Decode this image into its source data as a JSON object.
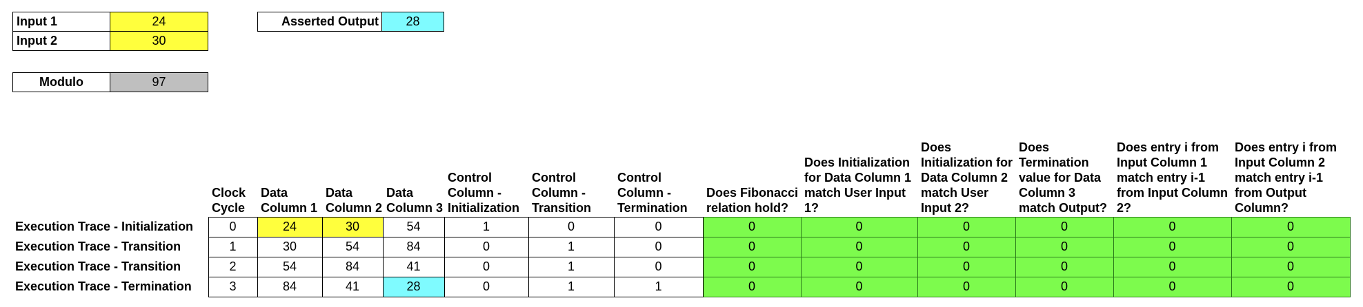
{
  "params": {
    "input1": {
      "label": "Input 1",
      "value": "24"
    },
    "input2": {
      "label": "Input 2",
      "value": "30"
    },
    "asserted_output": {
      "label": "Asserted Output",
      "value": "28"
    },
    "modulo": {
      "label": "Modulo",
      "value": "97"
    }
  },
  "colors": {
    "input_yellow": "#ffff3d",
    "output_cyan": "#7ffbff",
    "modulo_gray": "#bfbfbf",
    "check_green": "#7dfb4d"
  },
  "table": {
    "headers": {
      "clock": "Clock Cycle",
      "d1": "Data Column 1",
      "d2": "Data Column 2",
      "d3": "Data Column 3",
      "c_init": "Control Column - Initialization",
      "c_trans": "Control Column - Transition",
      "c_term": "Control Column - Termination",
      "q_fib": "Does Fibonacci relation hold?",
      "q_init1": "Does Initialization for Data Column 1 match User Input 1?",
      "q_init2": "Does Initialization for Data Column 2 match User Input 2?",
      "q_term": "Does Termination value for Data Column 3 match Output?",
      "q_e1": "Does entry i from Input Column 1 match entry i-1 from Input Column 2?",
      "q_e2": "Does entry i from Input Column 2 match entry i-1 from Output Column?"
    },
    "rows": [
      {
        "label": "Execution Trace - Initialization",
        "cells": [
          "0",
          "24",
          "30",
          "54",
          "1",
          "0",
          "0",
          "0",
          "0",
          "0",
          "0",
          "0",
          "0"
        ]
      },
      {
        "label": "Execution Trace - Transition",
        "cells": [
          "1",
          "30",
          "54",
          "84",
          "0",
          "1",
          "0",
          "0",
          "0",
          "0",
          "0",
          "0",
          "0"
        ]
      },
      {
        "label": "Execution Trace - Transition",
        "cells": [
          "2",
          "54",
          "84",
          "41",
          "0",
          "1",
          "0",
          "0",
          "0",
          "0",
          "0",
          "0",
          "0"
        ]
      },
      {
        "label": "Execution Trace - Termination",
        "cells": [
          "3",
          "84",
          "41",
          "28",
          "0",
          "1",
          "1",
          "0",
          "0",
          "0",
          "0",
          "0",
          "0"
        ]
      }
    ]
  }
}
